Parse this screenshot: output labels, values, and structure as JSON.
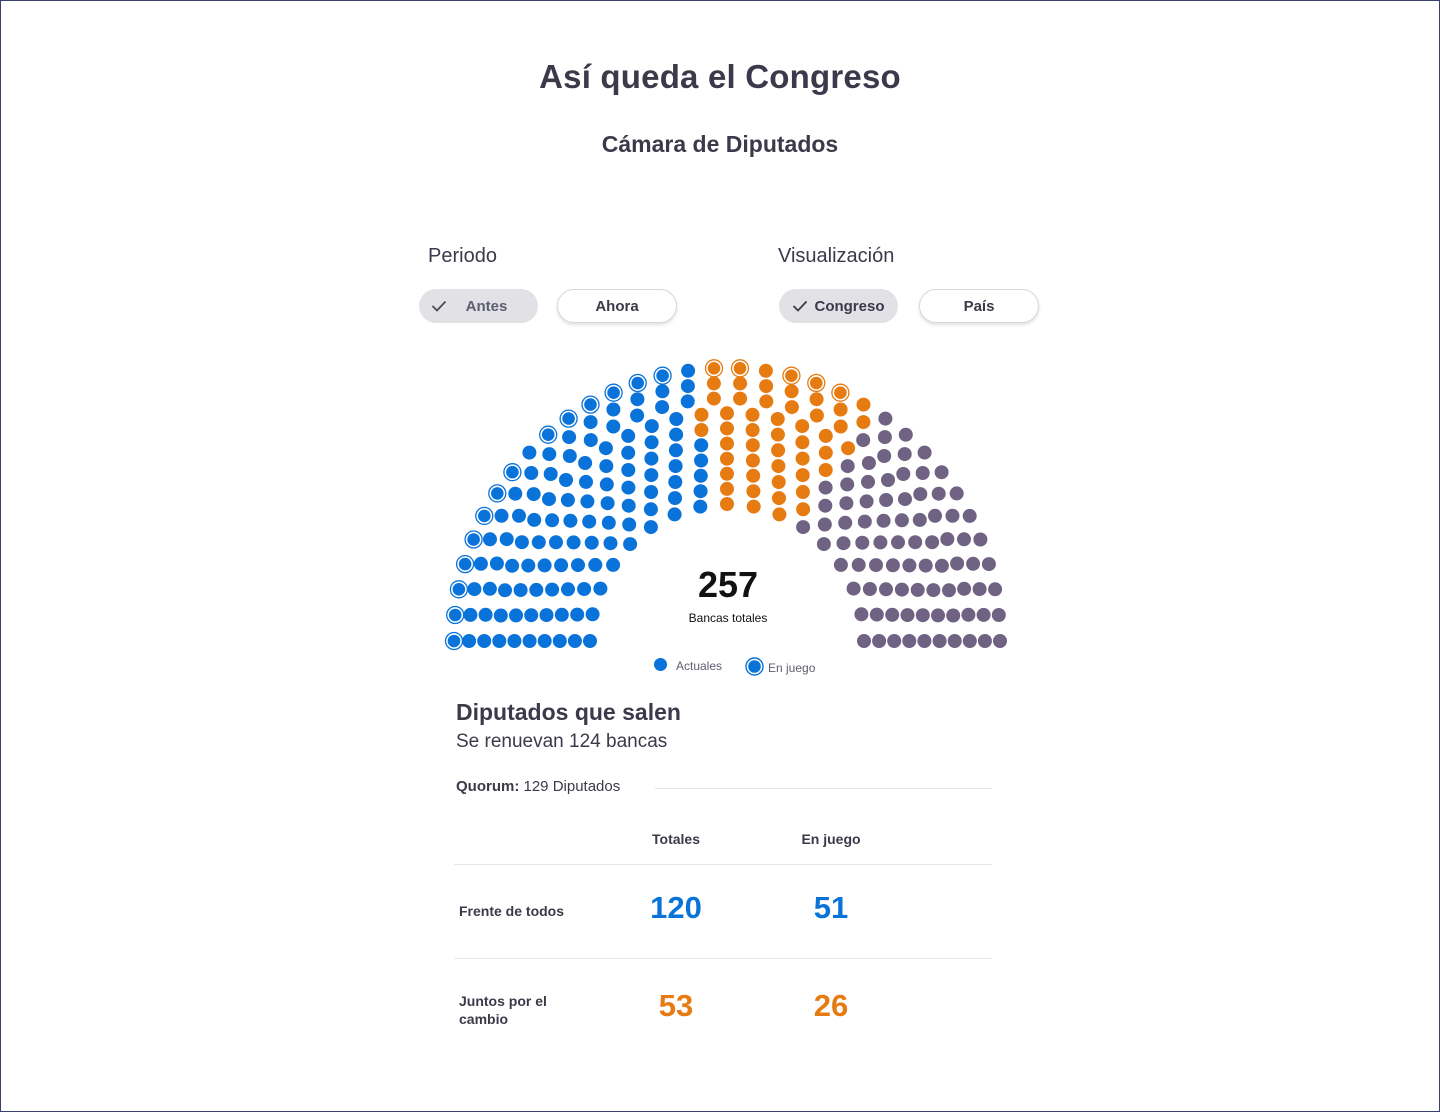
{
  "page": {
    "title": "Así queda el Congreso",
    "subtitle": "Cámara de Diputados"
  },
  "filters": {
    "periodo": {
      "label": "Periodo",
      "options": [
        {
          "label": "Antes",
          "selected": true
        },
        {
          "label": "Ahora",
          "selected": false
        }
      ]
    },
    "visualizacion": {
      "label": "Visualización",
      "options": [
        {
          "label": "Congreso",
          "selected": true
        },
        {
          "label": "País",
          "selected": false
        }
      ]
    }
  },
  "hemicycle": {
    "total": "257",
    "total_label": "Bancas totales",
    "legend": [
      {
        "label": "Actuales",
        "icon": "filled-dot-icon"
      },
      {
        "label": "En juego",
        "icon": "ringed-dot-icon"
      }
    ],
    "colors": {
      "frente": "#0a73d9",
      "juntos": "#e67b12",
      "otros": "#6f6283"
    }
  },
  "chart_data": {
    "type": "hemicycle",
    "total_seats": 257,
    "series": [
      {
        "name": "Frente de todos",
        "seats": 120,
        "en_juego": 51,
        "color": "#0a73d9"
      },
      {
        "name": "Juntos por el cambio",
        "seats": 53,
        "en_juego": 26,
        "color": "#e67b12"
      },
      {
        "seats": 84,
        "color": "#6f6283"
      }
    ]
  },
  "summary": {
    "heading": "Diputados que salen",
    "subheading": "Se renuevan 124 bancas",
    "quorum_label": "Quorum:",
    "quorum_value": "129 Diputados",
    "columns": [
      "Totales",
      "En juego"
    ],
    "rows": [
      {
        "label": "Frente de todos",
        "totales": "120",
        "en_juego": "51",
        "color": "#0a73d9"
      },
      {
        "label": "Juntos por el cambio",
        "totales": "53",
        "en_juego": "26",
        "color": "#e67b12"
      }
    ]
  }
}
